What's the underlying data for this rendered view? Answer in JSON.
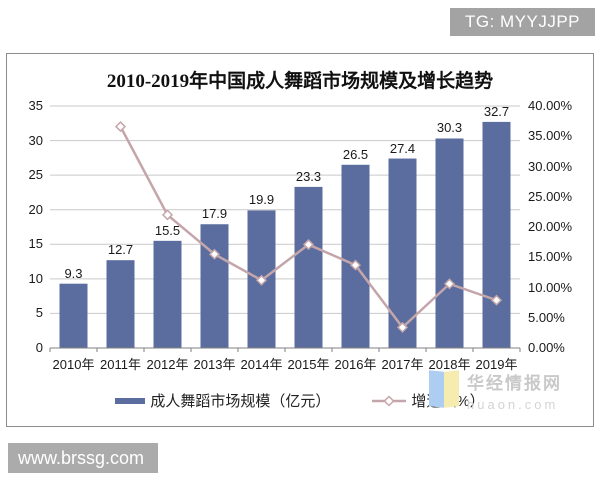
{
  "badges": {
    "tg": "TG: MYYJJPP",
    "site": "www.brssg.com"
  },
  "watermark": {
    "brand_cn": "华经情报网",
    "brand_en": "huaon.com"
  },
  "chart": {
    "title": "2010-2019年中国成人舞蹈市场规模及增长趋势"
  },
  "chart_data": {
    "type": "combo",
    "title": "2010-2019年中国成人舞蹈市场规模及增长趋势",
    "categories": [
      "2010年",
      "2011年",
      "2012年",
      "2013年",
      "2014年",
      "2015年",
      "2016年",
      "2017年",
      "2018年",
      "2019年"
    ],
    "series": [
      {
        "name": "成人舞蹈市场规模（亿元）",
        "type": "bar",
        "axis": "left",
        "values": [
          9.3,
          12.7,
          15.5,
          17.9,
          19.9,
          23.3,
          26.5,
          27.4,
          30.3,
          32.7
        ],
        "labels": [
          "9.3",
          "12.7",
          "15.5",
          "17.9",
          "19.9",
          "23.3",
          "26.5",
          "27.4",
          "30.3",
          "32.7"
        ],
        "color": "#5b6d9e"
      },
      {
        "name": "增速（%）",
        "type": "line",
        "axis": "right",
        "marker": "diamond",
        "values": [
          null,
          36.6,
          22.0,
          15.5,
          11.2,
          17.1,
          13.7,
          3.4,
          10.6,
          7.9
        ],
        "color": "#c4a6aa",
        "marker_fill": "#ffffff"
      }
    ],
    "left_axis": {
      "min": 0,
      "max": 35,
      "step": 5,
      "ticks": [
        "35",
        "30",
        "25",
        "20",
        "15",
        "10",
        "5",
        "0"
      ]
    },
    "right_axis": {
      "min": 0,
      "max": 40,
      "step": 5,
      "ticks": [
        "40.00%",
        "35.00%",
        "30.00%",
        "25.00%",
        "20.00%",
        "15.00%",
        "10.00%",
        "5.00%",
        "0.00%"
      ]
    },
    "grid": true,
    "grid_color": "#c9c9c9",
    "axis_line_color": "#808080",
    "legend_position": "bottom"
  }
}
